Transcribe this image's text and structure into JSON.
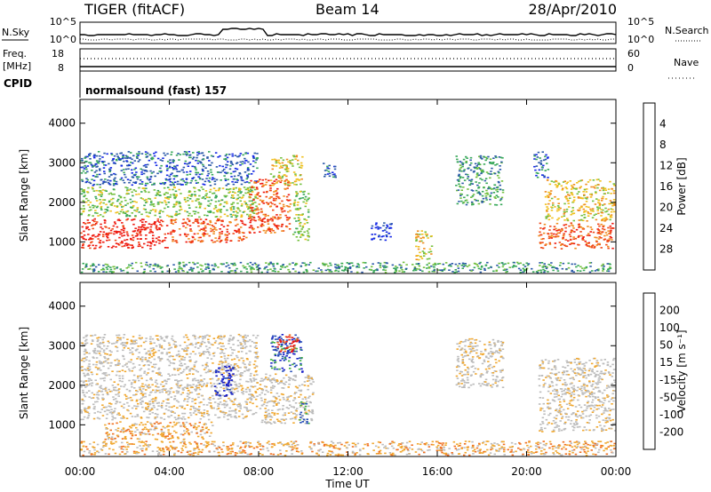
{
  "header": {
    "title_left": "TIGER (fitACF)",
    "title_center": "Beam 14",
    "title_right": "28/Apr/2010"
  },
  "strips": {
    "nsky_label": "N.Sky",
    "nsearch_label": "N.Search",
    "left_top_tick": "10^5",
    "left_bottom_tick": "10^0",
    "right_top_tick": "10^5",
    "right_bottom_tick": "10^0",
    "freq_label": "Freq.",
    "freq_unit": "[MHz]",
    "freq_top_tick": "18",
    "freq_bottom_tick": "8",
    "nave_label": "Nave",
    "nave_top_tick": "60",
    "nave_bottom_tick": "0",
    "cpid_label": "CPID",
    "cpid_value": "normalsound (fast) 157"
  },
  "colors": {
    "power_scale": [
      "#1428e6",
      "#2c5aa8",
      "#38a85a",
      "#74c040",
      "#f0c020",
      "#f08c20",
      "#f04a18",
      "#ee1a10"
    ],
    "velocity_scale": [
      "#e81a14",
      "#f07020",
      "#f0a830",
      "#bcbcbc",
      "#bcbcbc",
      "#40b040",
      "#2850b8",
      "#1a20c8"
    ]
  },
  "chart_data": [
    {
      "type": "heatmap",
      "panel": "power",
      "ylabel": "Slant Range [km]",
      "yticks": [
        "1000",
        "2000",
        "3000",
        "4000"
      ],
      "ylim": [
        200,
        4600
      ],
      "xlim": [
        0,
        24
      ],
      "colorbar_label": "Power [dB]",
      "colorbar_ticks": [
        "4",
        "8",
        "12",
        "16",
        "20",
        "24",
        "28"
      ],
      "scatter_regions": [
        {
          "t": [
            0.0,
            4.0
          ],
          "r": [
            800,
            1600
          ],
          "level": 7
        },
        {
          "t": [
            4.0,
            7.5
          ],
          "r": [
            950,
            1600
          ],
          "level": 6
        },
        {
          "t": [
            0.0,
            8.0
          ],
          "r": [
            1600,
            2400
          ],
          "level": 3
        },
        {
          "t": [
            0.0,
            8.0
          ],
          "r": [
            2400,
            3300
          ],
          "level": 1
        },
        {
          "t": [
            7.5,
            9.5
          ],
          "r": [
            1200,
            2600
          ],
          "level": 6
        },
        {
          "t": [
            8.5,
            10.0
          ],
          "r": [
            2400,
            3200
          ],
          "level": 4
        },
        {
          "t": [
            9.5,
            10.3
          ],
          "r": [
            1000,
            2300
          ],
          "level": 3
        },
        {
          "t": [
            10.8,
            11.5
          ],
          "r": [
            2600,
            3000
          ],
          "level": 1
        },
        {
          "t": [
            13.0,
            14.0
          ],
          "r": [
            1000,
            1500
          ],
          "level": 0
        },
        {
          "t": [
            15.0,
            15.8
          ],
          "r": [
            500,
            1300
          ],
          "level": 4
        },
        {
          "t": [
            16.8,
            19.0
          ],
          "r": [
            1900,
            3200
          ],
          "level": 2
        },
        {
          "t": [
            20.5,
            24.0
          ],
          "r": [
            800,
            1500
          ],
          "level": 6
        },
        {
          "t": [
            20.8,
            24.0
          ],
          "r": [
            1500,
            2600
          ],
          "level": 4
        },
        {
          "t": [
            20.3,
            21.0
          ],
          "r": [
            2600,
            3300
          ],
          "level": 1
        },
        {
          "t": [
            0.0,
            24.0
          ],
          "r": [
            200,
            500
          ],
          "level": 2
        }
      ]
    },
    {
      "type": "heatmap",
      "panel": "velocity",
      "xlabel": "Time UT",
      "ylabel": "Slant Range [km]",
      "xticks": [
        "00:00",
        "04:00",
        "08:00",
        "12:00",
        "16:00",
        "20:00",
        "00:00"
      ],
      "yticks": [
        "1000",
        "2000",
        "3000",
        "4000"
      ],
      "ylim": [
        200,
        4600
      ],
      "xlim": [
        0,
        24
      ],
      "colorbar_label": "Velocity [m s⁻¹]",
      "colorbar_ticks": [
        "200",
        "100",
        "50",
        "15",
        "-15",
        "-50",
        "-100",
        "-200"
      ],
      "scatter_regions": [
        {
          "t": [
            0.0,
            8.0
          ],
          "r": [
            1100,
            2200
          ],
          "level": 3
        },
        {
          "t": [
            0.0,
            8.0
          ],
          "r": [
            2200,
            3300
          ],
          "level": 3
        },
        {
          "t": [
            1.0,
            6.0
          ],
          "r": [
            600,
            1100
          ],
          "level": 2
        },
        {
          "t": [
            6.0,
            7.0
          ],
          "r": [
            1700,
            2500
          ],
          "level": 7
        },
        {
          "t": [
            8.5,
            10.0
          ],
          "r": [
            2300,
            3300
          ],
          "level": 6
        },
        {
          "t": [
            8.8,
            9.8
          ],
          "r": [
            2800,
            3300
          ],
          "level": 0
        },
        {
          "t": [
            8.0,
            10.5
          ],
          "r": [
            1000,
            2300
          ],
          "level": 3
        },
        {
          "t": [
            9.8,
            10.3
          ],
          "r": [
            1000,
            1600
          ],
          "level": 5
        },
        {
          "t": [
            16.8,
            19.0
          ],
          "r": [
            1900,
            3200
          ],
          "level": 3
        },
        {
          "t": [
            20.5,
            24.0
          ],
          "r": [
            800,
            2700
          ],
          "level": 3
        },
        {
          "t": [
            0.0,
            24.0
          ],
          "r": [
            200,
            600
          ],
          "level": 2
        }
      ]
    }
  ]
}
